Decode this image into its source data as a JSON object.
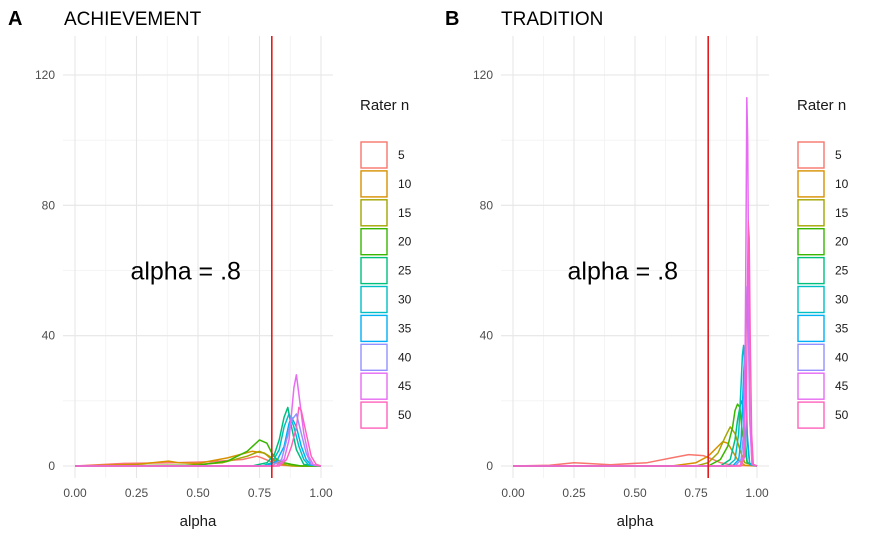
{
  "chart_data": [
    {
      "type": "line",
      "tag": "A",
      "title": "ACHIEVEMENT",
      "xlabel": "alpha",
      "ylabel": "",
      "xlim": [
        0,
        1
      ],
      "ylim": [
        0,
        120
      ],
      "xticks": [
        "0.00",
        "0.25",
        "0.50",
        "0.75",
        "1.00"
      ],
      "yticks": [
        "0",
        "40",
        "80",
        "120"
      ],
      "vline": 0.8,
      "vline_color": "#e41a1c",
      "annotation": "alpha = .8",
      "legend_title": "Rater n",
      "grid": true,
      "series": [
        {
          "name": "5",
          "color": "#F8766D",
          "x": [
            0,
            0.2,
            0.4,
            0.55,
            0.68,
            0.74,
            0.76,
            0.8,
            0.84,
            0.9,
            1.0
          ],
          "y": [
            0,
            0.8,
            1.0,
            1.3,
            2.0,
            3.0,
            2.5,
            1.2,
            0.2,
            0,
            0
          ]
        },
        {
          "name": "10",
          "color": "#D89000",
          "x": [
            0,
            0.25,
            0.38,
            0.42,
            0.5,
            0.62,
            0.72,
            0.77,
            0.8,
            0.84,
            0.88,
            1.0
          ],
          "y": [
            0,
            0.5,
            1.5,
            1.0,
            0.8,
            2.5,
            4.5,
            4.0,
            2.0,
            0.5,
            0,
            0
          ]
        },
        {
          "name": "15",
          "color": "#A3A500",
          "x": [
            0,
            0.45,
            0.6,
            0.7,
            0.75,
            0.78,
            0.82,
            0.86,
            0.9,
            1.0
          ],
          "y": [
            0,
            0.2,
            1.0,
            3.0,
            4.5,
            3.5,
            1.5,
            0.3,
            0,
            0
          ]
        },
        {
          "name": "20",
          "color": "#39B600",
          "x": [
            0,
            0.5,
            0.62,
            0.7,
            0.75,
            0.78,
            0.8,
            0.82,
            0.85,
            0.88,
            0.92,
            1.0
          ],
          "y": [
            0,
            0.2,
            1.5,
            4.5,
            8.0,
            7.0,
            4.0,
            2.0,
            1.0,
            0.5,
            0,
            0
          ]
        },
        {
          "name": "25",
          "color": "#00BF7D",
          "x": [
            0,
            0.72,
            0.78,
            0.81,
            0.83,
            0.85,
            0.865,
            0.88,
            0.9,
            0.93,
            1.0
          ],
          "y": [
            0,
            0,
            1.0,
            3.5,
            8.0,
            15.0,
            18.0,
            12.0,
            5.0,
            0.5,
            0
          ]
        },
        {
          "name": "30",
          "color": "#00BFC4",
          "x": [
            0,
            0.76,
            0.8,
            0.83,
            0.85,
            0.87,
            0.89,
            0.91,
            0.93,
            0.95,
            1.0
          ],
          "y": [
            0,
            0,
            1.0,
            5.0,
            12.0,
            16.0,
            12.0,
            6.0,
            2.0,
            0.3,
            0
          ]
        },
        {
          "name": "35",
          "color": "#00B0F6",
          "x": [
            0,
            0.78,
            0.82,
            0.85,
            0.87,
            0.88,
            0.9,
            0.92,
            0.94,
            0.96,
            1.0
          ],
          "y": [
            0,
            0,
            1.5,
            6.0,
            13.0,
            15.0,
            12.0,
            6.0,
            2.0,
            0.3,
            0
          ]
        },
        {
          "name": "40",
          "color": "#9590FF",
          "x": [
            0,
            0.8,
            0.84,
            0.86,
            0.88,
            0.9,
            0.92,
            0.94,
            0.96,
            1.0
          ],
          "y": [
            0,
            0,
            2.0,
            8.0,
            14.0,
            16.0,
            10.0,
            4.0,
            0.5,
            0
          ]
        },
        {
          "name": "45",
          "color": "#E76BF3",
          "x": [
            0,
            0.82,
            0.85,
            0.87,
            0.88,
            0.89,
            0.9,
            0.91,
            0.93,
            0.95,
            0.97,
            1.0
          ],
          "y": [
            0,
            0,
            2.0,
            8.0,
            16.0,
            24.0,
            28.0,
            22.0,
            10.0,
            3.0,
            0.3,
            0
          ]
        },
        {
          "name": "50",
          "color": "#FF62BC",
          "x": [
            0,
            0.83,
            0.86,
            0.88,
            0.9,
            0.91,
            0.92,
            0.94,
            0.96,
            0.98,
            1.0
          ],
          "y": [
            0,
            0,
            2.0,
            6.0,
            12.0,
            18.0,
            17.0,
            10.0,
            3.0,
            0.5,
            0
          ]
        }
      ]
    },
    {
      "type": "line",
      "tag": "B",
      "title": "TRADITION",
      "xlabel": "alpha",
      "ylabel": "",
      "xlim": [
        0,
        1
      ],
      "ylim": [
        0,
        120
      ],
      "xticks": [
        "0.00",
        "0.25",
        "0.50",
        "0.75",
        "1.00"
      ],
      "yticks": [
        "0",
        "40",
        "80",
        "120"
      ],
      "vline": 0.8,
      "vline_color": "#e41a1c",
      "annotation": "alpha = .8",
      "legend_title": "Rater n",
      "grid": true,
      "series": [
        {
          "name": "5",
          "color": "#F8766D",
          "x": [
            0,
            0.15,
            0.25,
            0.3,
            0.4,
            0.55,
            0.65,
            0.72,
            0.78,
            0.82,
            0.85,
            0.9,
            1.0
          ],
          "y": [
            0,
            0.2,
            1.0,
            0.8,
            0.4,
            1.0,
            2.5,
            3.5,
            3.2,
            2.0,
            1.0,
            0.2,
            0
          ]
        },
        {
          "name": "10",
          "color": "#D89000",
          "x": [
            0,
            0.65,
            0.75,
            0.8,
            0.84,
            0.86,
            0.88,
            0.9,
            0.92,
            0.95,
            1.0
          ],
          "y": [
            0,
            0,
            1.0,
            3.0,
            6.0,
            7.5,
            7.0,
            4.5,
            2.0,
            0.2,
            0
          ]
        },
        {
          "name": "15",
          "color": "#A3A500",
          "x": [
            0,
            0.75,
            0.8,
            0.84,
            0.87,
            0.89,
            0.91,
            0.93,
            0.95,
            1.0
          ],
          "y": [
            0,
            0,
            1.0,
            4.0,
            9.0,
            12.0,
            10.0,
            5.0,
            1.0,
            0
          ]
        },
        {
          "name": "20",
          "color": "#39B600",
          "x": [
            0,
            0.8,
            0.85,
            0.88,
            0.9,
            0.91,
            0.92,
            0.93,
            0.94,
            0.96,
            1.0
          ],
          "y": [
            0,
            0,
            2.0,
            6.0,
            12.0,
            17.0,
            19.0,
            18.0,
            10.0,
            1.0,
            0
          ]
        },
        {
          "name": "25",
          "color": "#00BF7D",
          "x": [
            0,
            0.85,
            0.89,
            0.91,
            0.92,
            0.93,
            0.935,
            0.94,
            0.95,
            0.96,
            1.0
          ],
          "y": [
            0,
            0,
            2.0,
            8.0,
            14.0,
            18.0,
            20.0,
            19.0,
            10.0,
            1.0,
            0
          ]
        },
        {
          "name": "30",
          "color": "#00BFC4",
          "x": [
            0,
            0.88,
            0.91,
            0.925,
            0.935,
            0.94,
            0.945,
            0.95,
            0.96,
            0.97,
            1.0
          ],
          "y": [
            0,
            0,
            2.0,
            10.0,
            25.0,
            34.0,
            37.0,
            30.0,
            8.0,
            0.5,
            0
          ]
        },
        {
          "name": "35",
          "color": "#00B0F6",
          "x": [
            0,
            0.9,
            0.925,
            0.935,
            0.94,
            0.945,
            0.95,
            0.955,
            0.96,
            0.97,
            1.0
          ],
          "y": [
            0,
            0,
            2.0,
            8.0,
            18.0,
            28.0,
            34.0,
            25.0,
            10.0,
            0.5,
            0
          ]
        },
        {
          "name": "40",
          "color": "#9590FF",
          "x": [
            0,
            0.91,
            0.935,
            0.945,
            0.95,
            0.955,
            0.96,
            0.965,
            0.97,
            0.98,
            1.0
          ],
          "y": [
            0,
            0,
            2.0,
            10.0,
            30.0,
            48.0,
            55.0,
            40.0,
            15.0,
            0.5,
            0
          ]
        },
        {
          "name": "45",
          "color": "#E76BF3",
          "x": [
            0,
            0.93,
            0.945,
            0.95,
            0.955,
            0.958,
            0.962,
            0.966,
            0.97,
            0.98,
            1.0
          ],
          "y": [
            0,
            0,
            3.0,
            20.0,
            70.0,
            113.0,
            100.0,
            55.0,
            15.0,
            0.5,
            0
          ]
        },
        {
          "name": "50",
          "color": "#FF62BC",
          "x": [
            0,
            0.935,
            0.95,
            0.956,
            0.96,
            0.964,
            0.968,
            0.972,
            0.978,
            0.985,
            1.0
          ],
          "y": [
            0,
            0,
            3.0,
            15.0,
            45.0,
            75.0,
            70.0,
            40.0,
            10.0,
            0.5,
            0
          ]
        }
      ]
    }
  ]
}
